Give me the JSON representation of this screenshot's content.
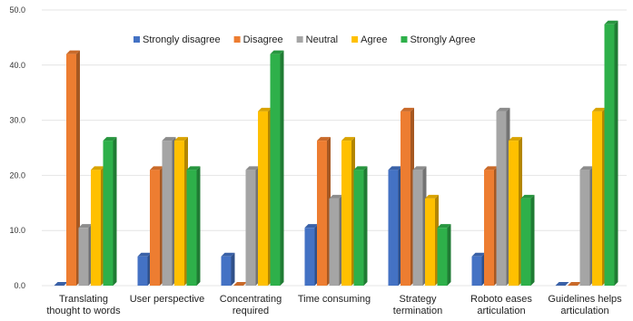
{
  "chart_data": {
    "type": "bar",
    "title": "",
    "xlabel": "",
    "ylabel": "",
    "ylim": [
      0,
      50
    ],
    "y_ticks": [
      "0.0",
      "10.0",
      "20.0",
      "30.0",
      "40.0",
      "50.0"
    ],
    "grid": true,
    "legend_position": "top-center",
    "style": "3d-clustered-bar",
    "categories": [
      [
        "Translating",
        "thought to words"
      ],
      [
        "User perspective"
      ],
      [
        "Concentrating",
        "required"
      ],
      [
        "Time consuming"
      ],
      [
        "Strategy",
        "termination"
      ],
      [
        "Roboto eases",
        "articulation"
      ],
      [
        "Guidelines helps",
        "articulation"
      ]
    ],
    "series": [
      {
        "name": "Strongly disagree",
        "color": "#4472c4",
        "values": [
          0,
          5.3,
          5.3,
          10.5,
          21,
          5.3,
          0
        ]
      },
      {
        "name": "Disagree",
        "color": "#ed7d31",
        "values": [
          42,
          21,
          0,
          26.3,
          31.6,
          21,
          0
        ]
      },
      {
        "name": "Neutral",
        "color": "#a5a5a5",
        "values": [
          10.5,
          26.3,
          21,
          15.8,
          21,
          31.6,
          21
        ]
      },
      {
        "name": "Agree",
        "color": "#ffc000",
        "values": [
          21,
          26.3,
          31.6,
          26.3,
          15.8,
          26.3,
          31.6
        ]
      },
      {
        "name": "Strongly Agree",
        "color": "#2eb04a",
        "values": [
          26.3,
          21,
          42,
          21,
          10.5,
          15.8,
          47.4
        ]
      }
    ]
  }
}
